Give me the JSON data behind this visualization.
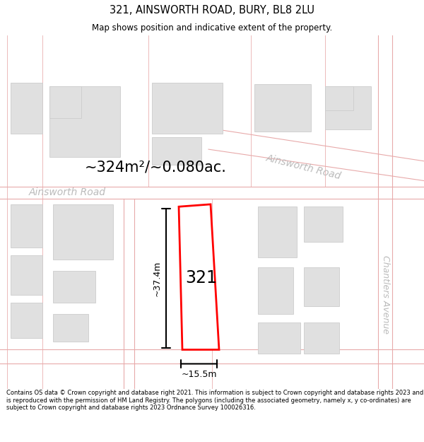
{
  "title": "321, AINSWORTH ROAD, BURY, BL8 2LU",
  "subtitle": "Map shows position and indicative extent of the property.",
  "footer": "Contains OS data © Crown copyright and database right 2021. This information is subject to Crown copyright and database rights 2023 and is reproduced with the permission of HM Land Registry. The polygons (including the associated geometry, namely x, y co-ordinates) are subject to Crown copyright and database rights 2023 Ordnance Survey 100026316.",
  "map_bg": "#f8f8f8",
  "road_line_color": "#e8aaaa",
  "building_fill": "#e0e0e0",
  "building_stroke": "#cccccc",
  "plot_color": "#ff0000",
  "area_text": "~324m²/~0.080ac.",
  "plot_label": "321",
  "width_label": "~15.5m",
  "height_label": "~37.4m",
  "street_label_h": "Ainsworth Road",
  "street_label_diag": "Ainsworth Road",
  "street_label_v": "Chantlers Avenue"
}
